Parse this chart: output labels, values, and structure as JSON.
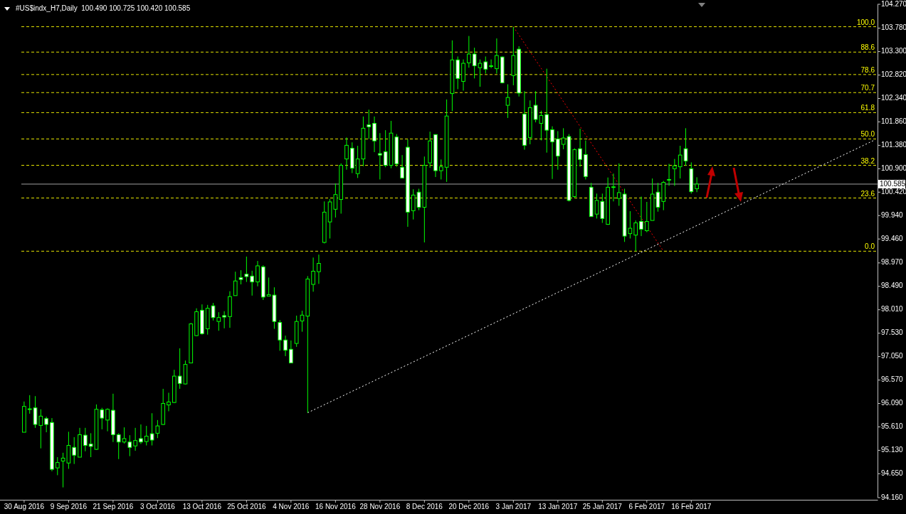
{
  "chart_data": {
    "type": "candlestick",
    "title": "#US$indx_H7,Daily  100.490 100.725 100.420 100.585",
    "color": "#00ff00",
    "categories": [
      "30 Aug 2016",
      null,
      null,
      null,
      null,
      null,
      null,
      null,
      "9 Sep 2016",
      null,
      null,
      null,
      null,
      null,
      null,
      null,
      "21 Sep 2016",
      null,
      null,
      null,
      null,
      null,
      null,
      null,
      "3 Oct 2016",
      null,
      null,
      null,
      null,
      null,
      null,
      null,
      "13 Oct 2016",
      null,
      null,
      null,
      null,
      null,
      null,
      null,
      "25 Oct 2016",
      null,
      null,
      null,
      null,
      null,
      null,
      null,
      "4 Nov 2016",
      null,
      null,
      null,
      null,
      null,
      null,
      null,
      "16 Nov 2016",
      null,
      null,
      null,
      null,
      null,
      null,
      null,
      "28 Nov 2016",
      null,
      null,
      null,
      null,
      null,
      null,
      null,
      "8 Dec 2016",
      null,
      null,
      null,
      null,
      null,
      null,
      null,
      "20 Dec 2016",
      null,
      null,
      null,
      null,
      null,
      null,
      null,
      "3 Jan 2017",
      null,
      null,
      null,
      null,
      null,
      null,
      null,
      "13 Jan 2017",
      null,
      null,
      null,
      null,
      null,
      null,
      null,
      "25 Jan 2017",
      null,
      null,
      null,
      null,
      null,
      null,
      null,
      "6 Feb 2017",
      null,
      null,
      null,
      null,
      null,
      null,
      null,
      "16 Feb 2017",
      null,
      null,
      null,
      null,
      null,
      null,
      null,
      null,
      null,
      null,
      null,
      null,
      null,
      null,
      null,
      null,
      null,
      null,
      null,
      null,
      null,
      null,
      null,
      null,
      null,
      null,
      null,
      null,
      null,
      null,
      null,
      null,
      null
    ],
    "ohlc": [
      [
        95.5,
        96.13,
        95.5,
        96.03
      ],
      [
        95.98,
        96.26,
        95.88,
        95.98
      ],
      [
        96.0,
        96.24,
        95.59,
        95.66
      ],
      [
        95.64,
        95.97,
        95.17,
        95.83
      ],
      [
        95.78,
        95.82,
        95.5,
        95.66
      ],
      [
        95.7,
        95.79,
        94.7,
        94.74
      ],
      [
        94.77,
        94.99,
        94.62,
        94.88
      ],
      [
        94.91,
        95.08,
        94.37,
        94.97
      ],
      [
        94.87,
        95.51,
        94.75,
        95.23
      ],
      [
        95.19,
        95.4,
        94.85,
        95.03
      ],
      [
        94.99,
        95.59,
        94.99,
        95.45
      ],
      [
        95.44,
        95.59,
        95.11,
        95.23
      ],
      [
        95.26,
        95.48,
        94.99,
        95.21
      ],
      [
        95.15,
        96.07,
        95.14,
        95.97
      ],
      [
        95.96,
        96.0,
        95.56,
        95.79
      ],
      [
        95.75,
        95.99,
        95.52,
        95.97
      ],
      [
        95.95,
        96.29,
        95.3,
        95.45
      ],
      [
        95.45,
        95.48,
        94.95,
        95.3
      ],
      [
        95.3,
        95.6,
        95.27,
        95.37
      ],
      [
        95.3,
        95.44,
        95.01,
        95.19
      ],
      [
        95.22,
        95.59,
        95.12,
        95.33
      ],
      [
        95.37,
        95.66,
        95.26,
        95.3
      ],
      [
        95.31,
        95.63,
        95.23,
        95.42
      ],
      [
        95.47,
        95.89,
        95.23,
        95.34
      ],
      [
        95.48,
        95.75,
        95.38,
        95.63
      ],
      [
        95.66,
        96.39,
        95.65,
        96.09
      ],
      [
        96.06,
        96.31,
        95.93,
        96.12
      ],
      [
        96.11,
        96.78,
        96.1,
        96.65
      ],
      [
        96.65,
        97.22,
        96.39,
        96.5
      ],
      [
        96.49,
        96.97,
        96.48,
        96.89
      ],
      [
        96.92,
        97.74,
        96.92,
        97.72
      ],
      [
        97.48,
        98.04,
        97.47,
        97.97
      ],
      [
        98.0,
        98.12,
        97.5,
        97.52
      ],
      [
        97.62,
        98.11,
        97.5,
        98.04
      ],
      [
        98.09,
        98.15,
        97.79,
        97.85
      ],
      [
        97.77,
        97.96,
        97.58,
        97.85
      ],
      [
        97.89,
        97.98,
        97.63,
        97.86
      ],
      [
        97.87,
        98.39,
        97.64,
        98.28
      ],
      [
        98.3,
        98.79,
        98.3,
        98.6
      ],
      [
        98.67,
        98.82,
        98.53,
        98.63
      ],
      [
        98.74,
        99.1,
        98.58,
        98.69
      ],
      [
        98.7,
        98.81,
        98.3,
        98.58
      ],
      [
        98.58,
        99.01,
        98.49,
        98.91
      ],
      [
        98.89,
        98.92,
        98.21,
        98.27
      ],
      [
        98.29,
        98.67,
        98.29,
        98.32
      ],
      [
        98.31,
        98.47,
        97.62,
        97.77
      ],
      [
        97.75,
        97.8,
        97.17,
        97.39
      ],
      [
        97.39,
        97.48,
        97.06,
        97.18
      ],
      [
        97.2,
        97.38,
        96.92,
        96.92
      ],
      [
        97.32,
        97.89,
        97.25,
        97.77
      ],
      [
        97.78,
        97.99,
        97.56,
        97.9
      ],
      [
        97.88,
        98.7,
        95.9,
        98.64
      ],
      [
        98.53,
        99.08,
        98.38,
        98.8
      ],
      [
        98.79,
        99.14,
        98.54,
        98.96
      ],
      [
        99.39,
        100.23,
        99.37,
        100.01
      ],
      [
        99.81,
        100.28,
        99.47,
        100.22
      ],
      [
        100.07,
        100.6,
        99.9,
        100.37
      ],
      [
        100.27,
        101.01,
        99.98,
        100.97
      ],
      [
        101.1,
        101.54,
        100.88,
        101.38
      ],
      [
        101.32,
        101.44,
        100.81,
        100.91
      ],
      [
        100.8,
        101.37,
        100.71,
        101.1
      ],
      [
        101.1,
        101.97,
        100.95,
        101.73
      ],
      [
        101.8,
        102.11,
        101.51,
        101.76
      ],
      [
        101.83,
        101.97,
        101.24,
        101.47
      ],
      [
        101.21,
        101.63,
        100.68,
        101.18
      ],
      [
        101.25,
        101.69,
        100.93,
        100.97
      ],
      [
        100.97,
        101.88,
        100.91,
        101.63
      ],
      [
        101.55,
        101.61,
        100.94,
        101.0
      ],
      [
        100.93,
        101.18,
        100.7,
        100.71
      ],
      [
        101.34,
        101.5,
        99.71,
        100.01
      ],
      [
        100.04,
        100.48,
        99.86,
        100.36
      ],
      [
        100.42,
        100.49,
        100.05,
        100.11
      ],
      [
        100.11,
        101.15,
        99.39,
        100.97
      ],
      [
        101.02,
        101.66,
        100.92,
        101.47
      ],
      [
        101.6,
        101.6,
        100.73,
        100.86
      ],
      [
        100.86,
        101.09,
        100.68,
        100.94
      ],
      [
        100.93,
        102.32,
        100.63,
        101.98
      ],
      [
        102.44,
        103.53,
        102.08,
        103.13
      ],
      [
        103.13,
        103.2,
        102.53,
        102.75
      ],
      [
        102.69,
        103.14,
        102.5,
        103.06
      ],
      [
        103.07,
        103.62,
        102.97,
        103.25
      ],
      [
        103.25,
        103.38,
        102.75,
        103.01
      ],
      [
        102.97,
        103.14,
        102.58,
        103.06
      ],
      [
        103.09,
        103.2,
        102.85,
        102.94
      ],
      [
        103.01,
        103.14,
        102.96,
        103.01
      ],
      [
        102.95,
        103.57,
        102.85,
        103.22
      ],
      [
        103.19,
        103.2,
        102.65,
        102.66
      ],
      [
        102.2,
        102.63,
        101.94,
        102.36
      ],
      [
        102.81,
        103.81,
        102.61,
        103.22
      ],
      [
        103.35,
        103.41,
        102.38,
        102.45
      ],
      [
        102.02,
        102.49,
        101.29,
        101.38
      ],
      [
        101.54,
        102.3,
        101.4,
        102.15
      ],
      [
        102.2,
        102.49,
        101.85,
        101.91
      ],
      [
        101.83,
        102.09,
        101.48,
        101.99
      ],
      [
        102.01,
        102.95,
        101.23,
        101.69
      ],
      [
        101.7,
        101.77,
        100.69,
        101.45
      ],
      [
        101.51,
        101.67,
        100.88,
        101.16
      ],
      [
        101.4,
        101.73,
        101.3,
        101.53
      ],
      [
        101.56,
        101.61,
        100.23,
        100.25
      ],
      [
        100.33,
        101.32,
        100.3,
        101.29
      ],
      [
        101.31,
        101.72,
        100.94,
        101.09
      ],
      [
        101.19,
        101.48,
        100.68,
        100.74
      ],
      [
        100.52,
        100.61,
        99.92,
        99.92
      ],
      [
        99.97,
        100.39,
        99.88,
        100.25
      ],
      [
        100.23,
        100.39,
        99.79,
        99.88
      ],
      [
        99.76,
        100.72,
        99.75,
        100.52
      ],
      [
        100.53,
        100.8,
        100.23,
        100.53
      ],
      [
        100.29,
        101.01,
        100.14,
        100.41
      ],
      [
        100.38,
        100.49,
        99.4,
        99.52
      ],
      [
        99.57,
        100.03,
        99.47,
        99.68
      ],
      [
        99.54,
        99.84,
        99.21,
        99.79
      ],
      [
        99.82,
        100.33,
        99.52,
        99.66
      ],
      [
        99.63,
        100.22,
        99.6,
        99.82
      ],
      [
        99.84,
        100.7,
        99.84,
        100.38
      ],
      [
        100.42,
        100.61,
        100.02,
        100.11
      ],
      [
        100.23,
        100.65,
        100.05,
        100.62
      ],
      [
        100.68,
        101.0,
        100.55,
        100.68
      ],
      [
        100.9,
        101.1,
        100.55,
        100.96
      ],
      [
        100.94,
        101.37,
        100.7,
        101.18
      ],
      [
        101.31,
        101.73,
        100.96,
        101.06
      ],
      [
        100.9,
        101.03,
        100.39,
        100.43
      ],
      [
        100.49,
        100.725,
        100.42,
        100.585
      ],
      null,
      null,
      null,
      null,
      null,
      null,
      null,
      null,
      null,
      null,
      null,
      null,
      null,
      null,
      null,
      null,
      null,
      null,
      null,
      null,
      null,
      null,
      null,
      null,
      null,
      null,
      null,
      null,
      null,
      null,
      null,
      null
    ],
    "series": [
      {
        "type": "line",
        "color": "#ffffff",
        "line_style": "dotted",
        "values": [
          null,
          null,
          null,
          null,
          null,
          null,
          null,
          null,
          null,
          null,
          null,
          null,
          null,
          null,
          null,
          null,
          null,
          null,
          null,
          null,
          null,
          null,
          null,
          null,
          null,
          null,
          null,
          null,
          null,
          null,
          null,
          null,
          null,
          null,
          null,
          null,
          null,
          null,
          null,
          null,
          null,
          null,
          null,
          null,
          null,
          null,
          null,
          null,
          null,
          null,
          null,
          95.9,
          null,
          null,
          null,
          null,
          null,
          null,
          null,
          null,
          null,
          null,
          null,
          null,
          null,
          null,
          null,
          null,
          null,
          null,
          null,
          null,
          null,
          null,
          null,
          null,
          null,
          null,
          null,
          null,
          null,
          null,
          null,
          null,
          null,
          null,
          null,
          null,
          null,
          null,
          null,
          null,
          null,
          null,
          null,
          null,
          null,
          null,
          null,
          null,
          null,
          null,
          null,
          null,
          null,
          null,
          null,
          null,
          null,
          null,
          null,
          null,
          null,
          null,
          null,
          null,
          null,
          null,
          null,
          null,
          null,
          null,
          null,
          null,
          null,
          null,
          null,
          null,
          null,
          null,
          null,
          null,
          null,
          null,
          null,
          null,
          null,
          null,
          null,
          null,
          null,
          null,
          null,
          null,
          null,
          null,
          null,
          null,
          null,
          null,
          null,
          null,
          null,
          101.49
        ]
      },
      {
        "type": "line",
        "color": "#ff0000",
        "line_style": "dotted",
        "values": [
          null,
          null,
          null,
          null,
          null,
          null,
          null,
          null,
          null,
          null,
          null,
          null,
          null,
          null,
          null,
          null,
          null,
          null,
          null,
          null,
          null,
          null,
          null,
          null,
          null,
          null,
          null,
          null,
          null,
          null,
          null,
          null,
          null,
          null,
          null,
          null,
          null,
          null,
          null,
          null,
          null,
          null,
          null,
          null,
          null,
          null,
          null,
          null,
          null,
          null,
          null,
          null,
          null,
          null,
          null,
          null,
          null,
          null,
          null,
          null,
          null,
          null,
          null,
          null,
          null,
          null,
          null,
          null,
          null,
          null,
          null,
          null,
          null,
          null,
          null,
          null,
          null,
          null,
          null,
          null,
          null,
          null,
          null,
          null,
          null,
          null,
          null,
          null,
          103.81,
          null,
          null,
          null,
          null,
          null,
          null,
          null,
          null,
          null,
          null,
          null,
          null,
          null,
          null,
          null,
          null,
          null,
          null,
          null,
          null,
          null,
          null,
          null,
          null,
          null,
          null,
          99.21,
          null,
          null,
          null,
          null,
          null,
          null,
          null,
          null,
          null,
          null,
          null,
          null,
          null,
          null,
          null,
          null,
          null,
          null,
          null,
          null,
          null,
          null,
          null,
          null,
          null,
          null,
          null,
          null,
          null,
          null,
          null,
          null,
          null,
          null,
          null,
          null,
          null,
          null
        ]
      }
    ],
    "ref_lines": [
      {
        "axis": "y",
        "value": 103.81,
        "color": "#ffff00",
        "line_style": "dashed"
      },
      {
        "axis": "y",
        "value": 103.29,
        "color": "#ffff00",
        "line_style": "dashed"
      },
      {
        "axis": "y",
        "value": 102.83,
        "color": "#ffff00",
        "line_style": "dashed"
      },
      {
        "axis": "y",
        "value": 102.46,
        "color": "#ffff00",
        "line_style": "dashed"
      },
      {
        "axis": "y",
        "value": 102.05,
        "color": "#ffff00",
        "line_style": "dashed"
      },
      {
        "axis": "y",
        "value": 101.51,
        "color": "#ffff00",
        "line_style": "dashed"
      },
      {
        "axis": "y",
        "value": 100.97,
        "color": "#ffff00",
        "line_style": "dashed"
      },
      {
        "axis": "y",
        "value": 100.3,
        "color": "#ffff00",
        "line_style": "dashed"
      },
      {
        "axis": "y",
        "value": 99.21,
        "color": "#ffff00",
        "line_style": "dashed"
      },
      {
        "axis": "y",
        "value": 100.585,
        "label": "100.585",
        "color": "#a0a0a0",
        "line_style": "solid"
      }
    ],
    "annotations": [
      {
        "text": "100.0",
        "y": 103.81
      },
      {
        "text": "88.6",
        "y": 103.29
      },
      {
        "text": "78.6",
        "y": 102.83
      },
      {
        "text": "70.7",
        "y": 102.46
      },
      {
        "text": "61.8",
        "y": 102.05
      },
      {
        "text": "50.0",
        "y": 101.51
      },
      {
        "text": "38.2",
        "y": 100.97
      },
      {
        "text": "23.6",
        "y": 100.3
      },
      {
        "text": "0.0",
        "y": 99.21
      }
    ],
    "ylim": [
      94.16,
      104.27
    ],
    "yticks": [
      {
        "value": 104.27,
        "label": "104.270"
      },
      {
        "value": 103.78,
        "label": "103.780"
      },
      {
        "value": 103.3,
        "label": "103.300"
      },
      {
        "value": 102.82,
        "label": "102.820"
      },
      {
        "value": 102.34,
        "label": "102.340"
      },
      {
        "value": 101.86,
        "label": "101.860"
      },
      {
        "value": 101.38,
        "label": "101.380"
      },
      {
        "value": 100.9,
        "label": "100.900"
      },
      {
        "value": 100.42,
        "label": "100.420"
      },
      {
        "value": 99.94,
        "label": "99.940"
      },
      {
        "value": 99.46,
        "label": "99.460"
      },
      {
        "value": 98.97,
        "label": "98.970"
      },
      {
        "value": 98.49,
        "label": "98.490"
      },
      {
        "value": 98.01,
        "label": "98.010"
      },
      {
        "value": 97.53,
        "label": "97.530"
      },
      {
        "value": 97.05,
        "label": "97.050"
      },
      {
        "value": 96.57,
        "label": "96.570"
      },
      {
        "value": 96.09,
        "label": "96.090"
      },
      {
        "value": 95.61,
        "label": "95.610"
      },
      {
        "value": 95.13,
        "label": "95.130"
      },
      {
        "value": 94.65,
        "label": "94.650"
      },
      {
        "value": 94.16,
        "label": "94.160"
      }
    ]
  }
}
